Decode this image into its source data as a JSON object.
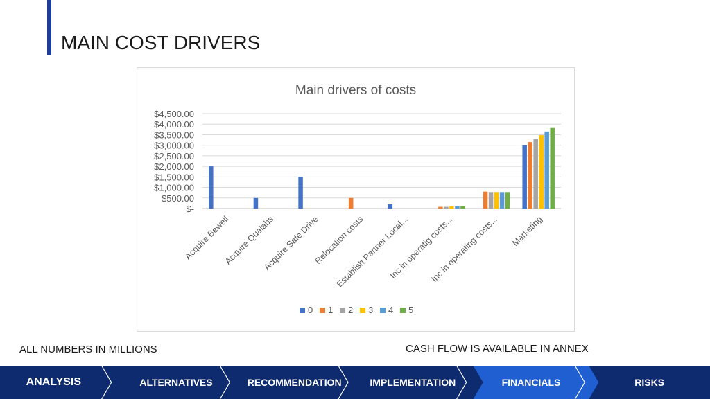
{
  "page": {
    "title": "MAIN COST DRIVERS",
    "note_left": "ALL NUMBERS IN MILLIONS",
    "note_right": "CASH FLOW IS AVAILABLE IN ANNEX"
  },
  "nav": {
    "items": [
      {
        "label": "ANALYSIS"
      },
      {
        "label": "ALTERNATIVES"
      },
      {
        "label": "RECOMMENDATION"
      },
      {
        "label": "IMPLEMENTATION"
      },
      {
        "label": "FINANCIALS"
      },
      {
        "label": "RISKS"
      }
    ],
    "active_index": 4,
    "colors": {
      "bar": "#0d2b6e",
      "active": "#1f5fd1",
      "divider": "#ffffff"
    }
  },
  "chart_data": {
    "type": "bar",
    "title": "Main drivers of costs",
    "xlabel": "",
    "ylabel": "",
    "ylim": [
      0,
      4500
    ],
    "y_ticks": [
      0,
      500,
      1000,
      1500,
      2000,
      2500,
      3000,
      3500,
      4000,
      4500
    ],
    "y_tick_labels": [
      "$-",
      "$500.00",
      "$1,000.00",
      "$1,500.00",
      "$2,000.00",
      "$2,500.00",
      "$3,000.00",
      "$3,500.00",
      "$4,000.00",
      "$4,500.00"
    ],
    "grid": true,
    "legend_position": "bottom",
    "categories": [
      "Acquire Bewell",
      "Acquire Qualabs",
      "Acquire Safe Drive",
      "Relocation costs",
      "Establish Partner Local...",
      "Inc in operatig costs...",
      "Inc in operating costs...",
      "Marketing"
    ],
    "series": [
      {
        "name": "0",
        "color": "#4472c4",
        "values": [
          2000,
          500,
          1500,
          0,
          200,
          0,
          0,
          3000
        ]
      },
      {
        "name": "1",
        "color": "#ed7d31",
        "values": [
          0,
          0,
          0,
          500,
          0,
          80,
          800,
          3150
        ]
      },
      {
        "name": "2",
        "color": "#a5a5a5",
        "values": [
          0,
          0,
          0,
          0,
          0,
          80,
          780,
          3300
        ]
      },
      {
        "name": "3",
        "color": "#ffc000",
        "values": [
          0,
          0,
          0,
          0,
          0,
          100,
          780,
          3480
        ]
      },
      {
        "name": "4",
        "color": "#5b9bd5",
        "values": [
          0,
          0,
          0,
          0,
          0,
          110,
          780,
          3650
        ]
      },
      {
        "name": "5",
        "color": "#70ad47",
        "values": [
          0,
          0,
          0,
          0,
          0,
          110,
          780,
          3820
        ]
      }
    ]
  }
}
